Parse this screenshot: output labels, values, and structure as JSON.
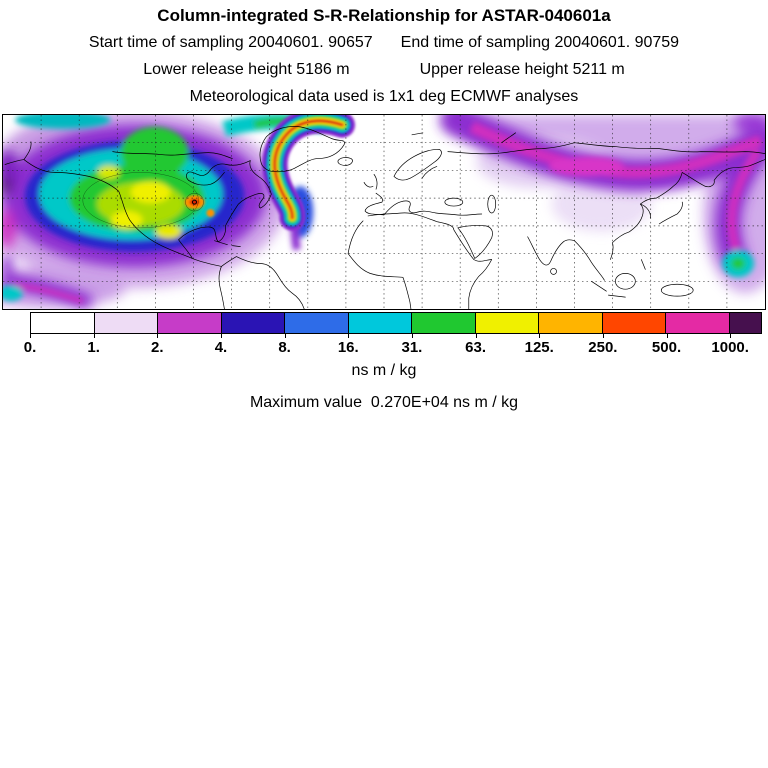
{
  "header": {
    "title": "Column-integrated S-R-Relationship for ASTAR-040601a",
    "sampling_start": "Start time of sampling 20040601. 90657",
    "sampling_end": "End time of sampling 20040601. 90759",
    "release_lower": "Lower release height 5186 m",
    "release_upper": "Upper release height 5211 m",
    "met_data": "Meteorological data used is 1x1 deg ECMWF analyses"
  },
  "colorbar": {
    "units": "ns m / kg",
    "tick_labels": [
      "0.",
      "1.",
      "2.",
      "4.",
      "8.",
      "16.",
      "31.",
      "63.",
      "125.",
      "250.",
      "500.",
      "1000."
    ],
    "segments": [
      {
        "color": "#ffffff",
        "width": 1
      },
      {
        "color": "#eedcf5",
        "width": 1
      },
      {
        "color": "#c63cc8",
        "width": 1
      },
      {
        "color": "#2a14b4",
        "width": 1
      },
      {
        "color": "#2e6ce8",
        "width": 1
      },
      {
        "color": "#00c8dc",
        "width": 1
      },
      {
        "color": "#20c830",
        "width": 1
      },
      {
        "color": "#f0f000",
        "width": 1
      },
      {
        "color": "#ffb400",
        "width": 1
      },
      {
        "color": "#ff4600",
        "width": 1
      },
      {
        "color": "#e42aa4",
        "width": 1
      },
      {
        "color": "#46104e",
        "width": 0.5
      }
    ]
  },
  "footer": {
    "maximum": "Maximum value  0.270E+04 ns m / kg"
  },
  "chart_data": {
    "type": "heatmap",
    "title": "Column-integrated S-R-Relationship for ASTAR-040601a",
    "units": "ns m / kg",
    "sampling_start": "20040601. 90657",
    "sampling_end": "20040601. 90759",
    "release_height_lower_m": 5186,
    "release_height_upper_m": 5211,
    "meteorological_data": "1x1 deg ECMWF analyses",
    "colorbar_levels": [
      0,
      1,
      2,
      4,
      8,
      16,
      31,
      63,
      125,
      250,
      500,
      1000
    ],
    "colorbar_interval_colors_including_overflow": [
      "#ffffff",
      "#eedcf5",
      "#c63cc8",
      "#2a14b4",
      "#2e6ce8",
      "#00c8dc",
      "#20c830",
      "#f0f000",
      "#ffb400",
      "#ff4600",
      "#e42aa4",
      "#46104e"
    ],
    "maximum_value": "0.270E+04",
    "legend_position": "bottom horizontal colorbar",
    "description_of_field": "Global map: high values (green/yellow/red core) over North America and a narrow red-cored rainbow plume arc near Greenland; purple/magenta bands across northern Eurasia and down the Pacific right edge; white elsewhere"
  }
}
